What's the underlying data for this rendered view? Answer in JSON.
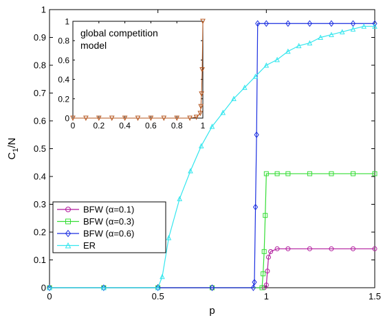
{
  "chart_data": [
    {
      "type": "line",
      "title": "",
      "xlabel": "p",
      "ylabel": "C1/N",
      "ylabel_main": "C",
      "ylabel_sub": "1",
      "ylabel_tail": "/N",
      "xlim": [
        0,
        1.5
      ],
      "ylim": [
        0,
        1
      ],
      "xticks": [
        0,
        0.5,
        1,
        1.5
      ],
      "xtick_labels": [
        "0",
        "0.5",
        "1",
        "1.5"
      ],
      "yticks": [
        0,
        0.1,
        0.2,
        0.3,
        0.4,
        0.5,
        0.6,
        0.7,
        0.8,
        0.9,
        1
      ],
      "ytick_labels": [
        "0",
        "0.1",
        "0.2",
        "0.3",
        "0.4",
        "0.5",
        "0.6",
        "0.7",
        "0.8",
        "0.9",
        "1"
      ],
      "grid": false,
      "legend_position": "bottom-left",
      "series": [
        {
          "name": "BFW (α=0.1)",
          "color": "#b0189c",
          "marker": "circle",
          "x": [
            0,
            0.25,
            0.5,
            0.75,
            0.99,
            1.0,
            1.005,
            1.01,
            1.02,
            1.05,
            1.1,
            1.2,
            1.3,
            1.4,
            1.5
          ],
          "y": [
            0,
            0,
            0,
            0,
            0,
            0.01,
            0.06,
            0.11,
            0.13,
            0.14,
            0.14,
            0.14,
            0.14,
            0.14,
            0.14
          ]
        },
        {
          "name": "BFW (α=0.3)",
          "color": "#33dd33",
          "marker": "square",
          "x": [
            0,
            0.25,
            0.5,
            0.75,
            0.98,
            0.985,
            0.99,
            0.995,
            1.0,
            1.05,
            1.1,
            1.2,
            1.3,
            1.4,
            1.5
          ],
          "y": [
            0,
            0,
            0,
            0,
            0,
            0.05,
            0.13,
            0.26,
            0.41,
            0.41,
            0.41,
            0.41,
            0.41,
            0.41,
            0.41
          ]
        },
        {
          "name": "BFW (α=0.6)",
          "color": "#1a2ee0",
          "marker": "diamond",
          "x": [
            0,
            0.25,
            0.5,
            0.75,
            0.94,
            0.945,
            0.95,
            0.955,
            0.96,
            1.0,
            1.1,
            1.2,
            1.3,
            1.4,
            1.5
          ],
          "y": [
            0,
            0,
            0,
            0,
            0,
            0.02,
            0.29,
            0.55,
            0.95,
            0.95,
            0.95,
            0.95,
            0.95,
            0.95,
            0.95
          ]
        },
        {
          "name": "ER",
          "color": "#33e6ee",
          "marker": "triangle",
          "x": [
            0,
            0.25,
            0.5,
            0.52,
            0.55,
            0.6,
            0.65,
            0.7,
            0.75,
            0.8,
            0.85,
            0.9,
            0.95,
            1.0,
            1.05,
            1.1,
            1.15,
            1.2,
            1.25,
            1.3,
            1.35,
            1.4,
            1.45,
            1.5
          ],
          "y": [
            0,
            0,
            0,
            0.04,
            0.18,
            0.32,
            0.42,
            0.51,
            0.58,
            0.63,
            0.68,
            0.72,
            0.76,
            0.8,
            0.82,
            0.85,
            0.87,
            0.88,
            0.9,
            0.91,
            0.92,
            0.93,
            0.94,
            0.94
          ]
        }
      ]
    },
    {
      "type": "line",
      "title": "global competition model",
      "title_lines": [
        "global competition",
        "model"
      ],
      "xlabel": "",
      "ylabel": "",
      "xlim": [
        0,
        1
      ],
      "ylim": [
        0,
        1
      ],
      "xticks": [
        0,
        0.2,
        0.4,
        0.6,
        0.8,
        1
      ],
      "xtick_labels": [
        "0",
        "0.2",
        "0.4",
        "0.6",
        "0.8",
        "1"
      ],
      "yticks": [
        0,
        0.2,
        0.4,
        0.6,
        0.8,
        1
      ],
      "ytick_labels": [
        "0",
        "0.2",
        "0.4",
        "0.6",
        "0.8",
        "1"
      ],
      "grid": false,
      "series": [
        {
          "color": "#b4541c",
          "marker": "triangle-down",
          "x": [
            0,
            0.1,
            0.2,
            0.3,
            0.4,
            0.5,
            0.6,
            0.7,
            0.8,
            0.9,
            0.95,
            0.98,
            0.985,
            0.99,
            0.995,
            1.0
          ],
          "y": [
            0,
            0,
            0,
            0,
            0,
            0,
            0,
            0,
            0,
            0,
            0.01,
            0.05,
            0.12,
            0.25,
            0.5,
            1.0
          ]
        }
      ]
    }
  ]
}
